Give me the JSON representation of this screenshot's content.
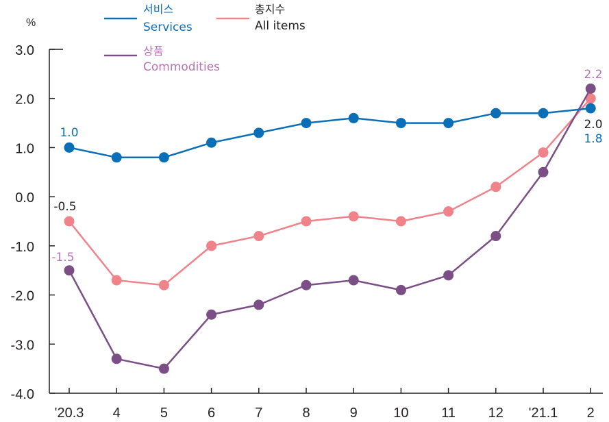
{
  "chart_data": {
    "type": "line",
    "ylabel": "%",
    "ylim": [
      -4.0,
      3.0
    ],
    "yticks": [
      "3.0",
      "2.0",
      "1.0",
      "0.0",
      "-1.0",
      "-2.0",
      "-3.0",
      "-4.0"
    ],
    "categories": [
      "'20.3",
      "4",
      "5",
      "6",
      "7",
      "8",
      "9",
      "10",
      "11",
      "12",
      "'21.1",
      "2"
    ],
    "legend_position": "top",
    "series": [
      {
        "key": "services",
        "name_ko": "서비스",
        "name_en": "Services",
        "color": "#0a6fb7",
        "values": [
          1.0,
          0.8,
          0.8,
          1.1,
          1.3,
          1.5,
          1.6,
          1.5,
          1.5,
          1.7,
          1.7,
          1.8
        ],
        "labels": {
          "first": "1.0",
          "last": "1.8"
        }
      },
      {
        "key": "all_items",
        "name_ko": "총지수",
        "name_en": "All items",
        "color": "#f0828a",
        "values": [
          -0.5,
          -1.7,
          -1.8,
          -1.0,
          -0.8,
          -0.5,
          -0.4,
          -0.5,
          -0.3,
          0.2,
          0.9,
          2.0
        ],
        "labels": {
          "first": "-0.5",
          "last": "2.0"
        }
      },
      {
        "key": "commodities",
        "name_ko": "상품",
        "name_en": "Commodities",
        "color": "#7b4f86",
        "label_color": "#b673b3",
        "values": [
          -1.5,
          -3.3,
          -3.5,
          -2.4,
          -2.2,
          -1.8,
          -1.7,
          -1.9,
          -1.6,
          -0.8,
          0.5,
          2.2
        ],
        "labels": {
          "first": "-1.5",
          "last": "2.2"
        }
      }
    ]
  }
}
